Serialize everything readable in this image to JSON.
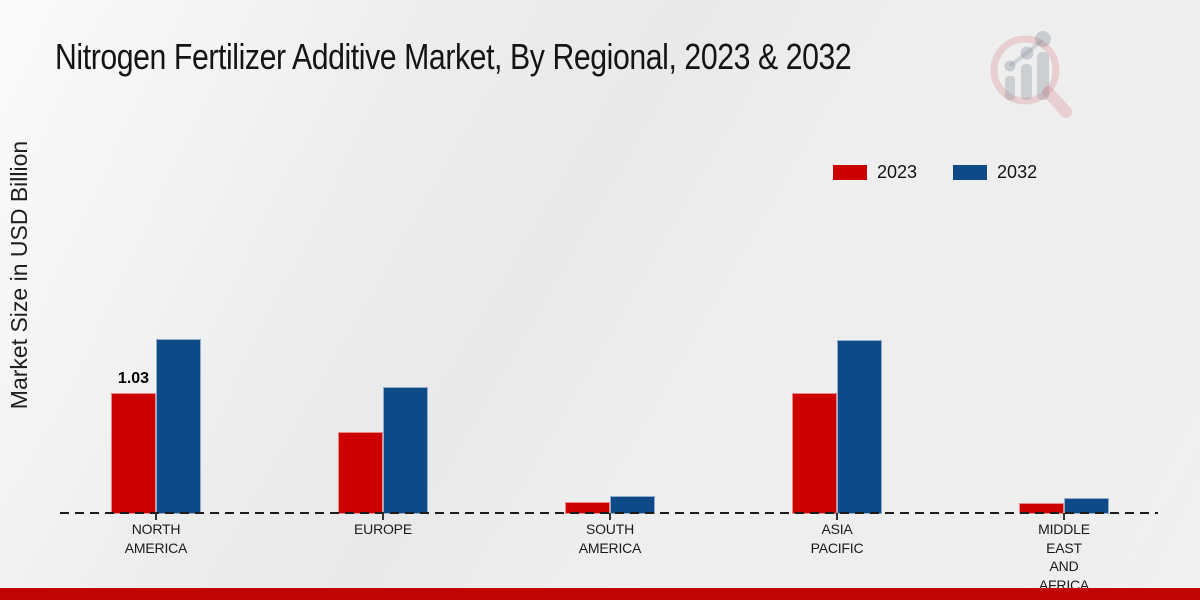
{
  "title": "Nitrogen Fertilizer Additive Market, By Regional, 2023 & 2032",
  "ylabel": "Market Size in USD Billion",
  "legend": {
    "items": [
      {
        "label": "2023",
        "color": "#cc0000"
      },
      {
        "label": "2032",
        "color": "#0d4a87"
      }
    ]
  },
  "footer": {
    "color": "#c00404"
  },
  "logo": {
    "name": "market-research-watermark-logo"
  },
  "chart_data": {
    "type": "bar",
    "categories": [
      "NORTH AMERICA",
      "EUROPE",
      "SOUTH AMERICA",
      "ASIA PACIFIC",
      "MIDDLE EAST AND AFRICA"
    ],
    "xtick_lines": [
      [
        "NORTH",
        "AMERICA"
      ],
      [
        "EUROPE"
      ],
      [
        "SOUTH",
        "AMERICA"
      ],
      [
        "ASIA",
        "PACIFIC"
      ],
      [
        "MIDDLE",
        "EAST",
        "AND",
        "AFRICA"
      ]
    ],
    "series": [
      {
        "name": "2023",
        "color": "#cc0000",
        "values": [
          1.03,
          0.7,
          0.1,
          1.03,
          0.09
        ]
      },
      {
        "name": "2032",
        "color": "#0d4a87",
        "values": [
          1.49,
          1.08,
          0.15,
          1.48,
          0.14
        ]
      }
    ],
    "data_labels": [
      {
        "category": "NORTH AMERICA",
        "series": "2023",
        "text": "1.03"
      }
    ],
    "title": "Nitrogen Fertilizer Additive Market, By Regional, 2023 & 2032",
    "xlabel": "",
    "ylabel": "Market Size in USD Billion",
    "ylim": [
      0,
      1.6
    ],
    "grid": false,
    "legend_position": "upper right",
    "baseline_style": "dashed"
  }
}
